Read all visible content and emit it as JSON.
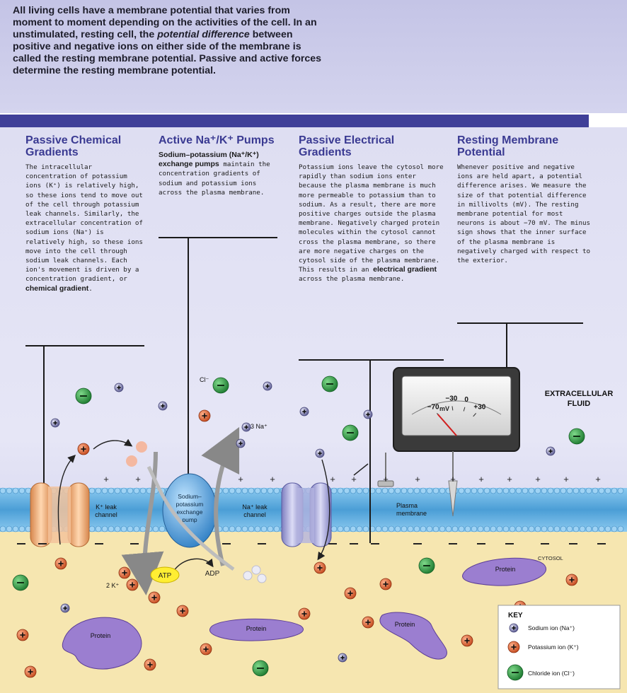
{
  "intro": {
    "p1": "All living cells have a membrane potential that varies from moment to moment depending on the activities of the cell. In an unstimulated, resting cell, the ",
    "p2": "potential difference",
    "p3": " between positive and negative ions on either side of the membrane is called the ",
    "p4": "resting membrane potential",
    "p5": ". Passive and active forces determine the resting membrane potential."
  },
  "columns": {
    "chem": {
      "title": "Passive Chemical Gradients",
      "text1": "The intracellular concentration of potassium ions (K⁺) is relatively high, so these ions tend to move out of the cell through potassium leak channels. Similarly, the extracellular concentration of sodium ions (Na⁺) is relatively high, so these ions move into the cell through sodium leak channels. Each ion's movement is driven by a concentration gradient, or ",
      "bold": "chemical gradient",
      "text2": "."
    },
    "pump": {
      "title": "Active Na⁺/K⁺ Pumps",
      "bold": "Sodium–potassium (Na⁺/K⁺) exchange pumps",
      "text": " maintain the concentration gradients of sodium and potassium ions across the plasma membrane."
    },
    "elec": {
      "title": "Passive Electrical Gradients",
      "text1": "Potassium ions leave the cytosol more rapidly than sodium ions enter because the plasma membrane is much more permeable to potassium than to sodium. As a result, there are more positive charges outside the plasma membrane. Negatively charged protein molecules within the cytosol cannot cross the plasma membrane, so there are more negative charges on the cytosol side of the plasma membrane. This results in an ",
      "bold": "electrical gradient",
      "text2": " across the plasma membrane."
    },
    "rest": {
      "title": "Resting Membrane Potential",
      "text": "Whenever positive and negative ions are held apart, a potential difference arises. We measure the size of that potential difference in millivolts (mV). The resting membrane potential for most neurons is about −70 mV. The minus sign shows that the inner surface of the plasma membrane is negatively charged with respect to the exterior."
    }
  },
  "diagram": {
    "extracellular": "EXTRACELLULAR FLUID",
    "extracellular_l1": "EXTRACELLULAR",
    "extracellular_l2": "FLUID",
    "cytosol": "CYTOSOL",
    "k_channel": "K⁺ leak channel",
    "k_channel_l1": "K⁺ leak",
    "k_channel_l2": "channel",
    "na_channel": "Na⁺ leak channel",
    "na_channel_l1": "Na⁺ leak",
    "na_channel_l2": "channel",
    "pump": "Sodium–potassium exchange pump",
    "pump_l1": "Sodium–",
    "pump_l2": "potassium",
    "pump_l3": "exchange",
    "pump_l4": "pump",
    "plasma_membrane_l1": "Plasma",
    "plasma_membrane_l2": "membrane",
    "three_na": "3 Na⁺",
    "two_k": "2 K⁺",
    "atp": "ATP",
    "adp": "ADP",
    "cl": "Cl⁻",
    "protein": "Protein",
    "meter": {
      "ticks": [
        "−70",
        "−30",
        "0",
        "+30"
      ],
      "unit": "mV",
      "reading": -70
    }
  },
  "key": {
    "title": "KEY",
    "sodium": "Sodium ion (Na⁺)",
    "potassium": "Potassium ion (K⁺)",
    "chloride": "Chloride ion (Cl⁻)"
  },
  "colors": {
    "header_bar": "#3f3f98",
    "title_blue": "#3a3a92",
    "membrane": "#5aa6d6",
    "cytosol": "#f6e6b0",
    "potassium": "#e06a3a",
    "sodium": "#7c7cb0",
    "chloride": "#2d9b44",
    "protein": "#9478c8"
  }
}
